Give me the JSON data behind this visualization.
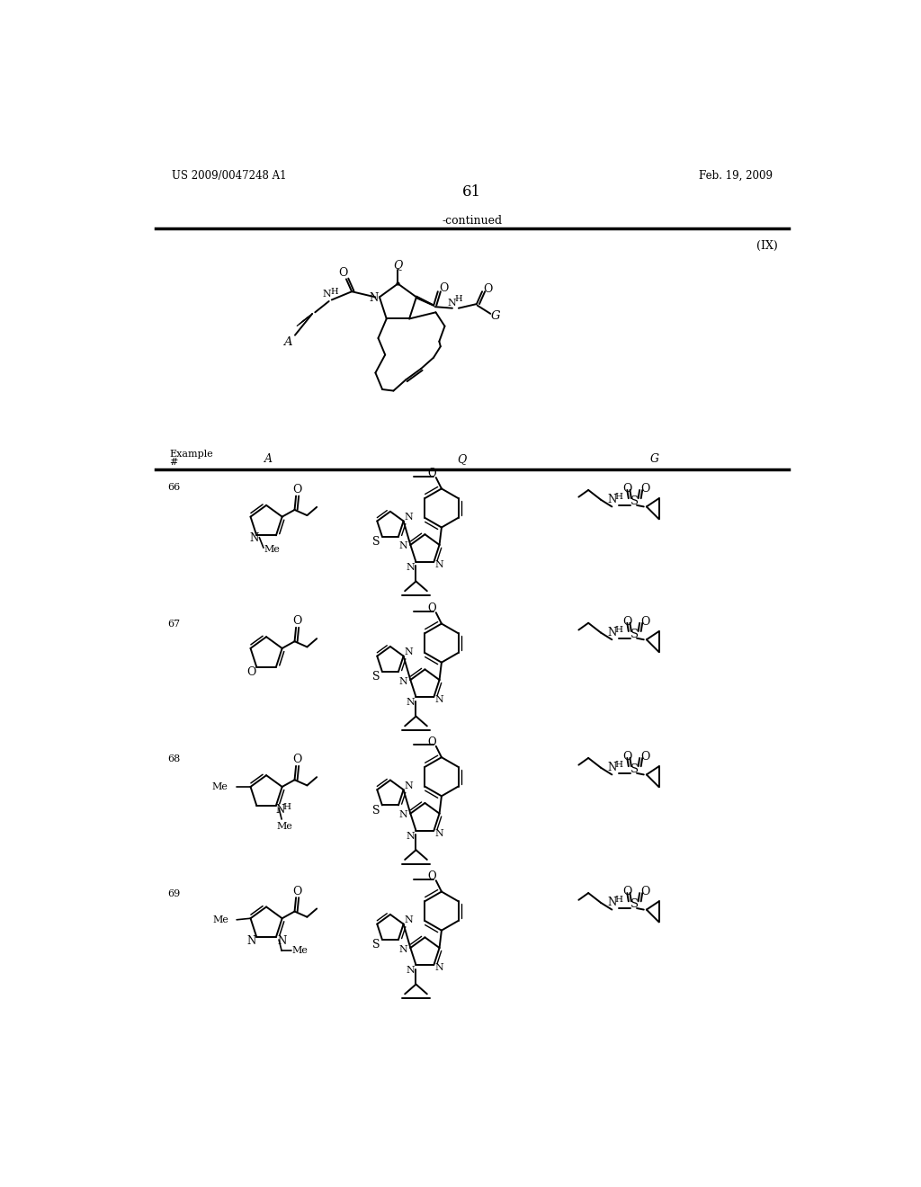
{
  "bg": "#ffffff",
  "header_left": "US 2009/0047248 A1",
  "header_right": "Feb. 19, 2009",
  "page_num": "61",
  "continued": "-continued",
  "formula_ix": "(IX)",
  "row_nums": [
    "66",
    "67",
    "68",
    "69"
  ]
}
